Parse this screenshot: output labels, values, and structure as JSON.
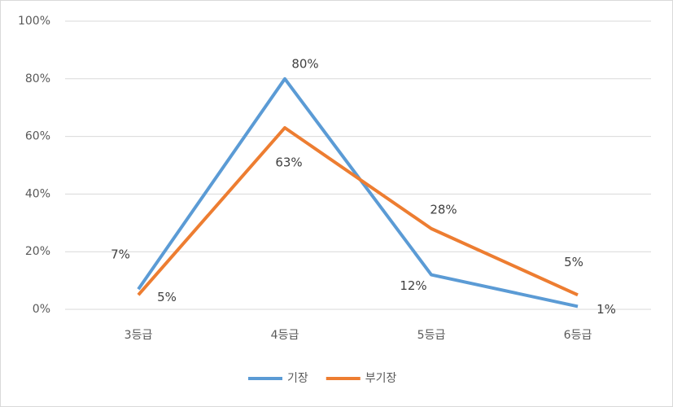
{
  "chart_data": {
    "type": "line",
    "categories": [
      "3등급",
      "4등급",
      "5등급",
      "6등급"
    ],
    "series": [
      {
        "name": "기장",
        "color": "#5b9bd5",
        "values": [
          7,
          80,
          12,
          1
        ],
        "value_labels": [
          "7%",
          "80%",
          "12%",
          "1%"
        ]
      },
      {
        "name": "부기장",
        "color": "#ed7d31",
        "values": [
          5,
          63,
          28,
          5
        ],
        "value_labels": [
          "5%",
          "63%",
          "28%",
          "5%"
        ]
      }
    ],
    "ylim": [
      0,
      100
    ],
    "yticks": [
      {
        "value": 0,
        "label": "0%"
      },
      {
        "value": 20,
        "label": "20%"
      },
      {
        "value": 40,
        "label": "40%"
      },
      {
        "value": 60,
        "label": "60%"
      },
      {
        "value": 80,
        "label": "80%"
      },
      {
        "value": 100,
        "label": "100%"
      }
    ],
    "grid": true,
    "legend": "bottom"
  }
}
